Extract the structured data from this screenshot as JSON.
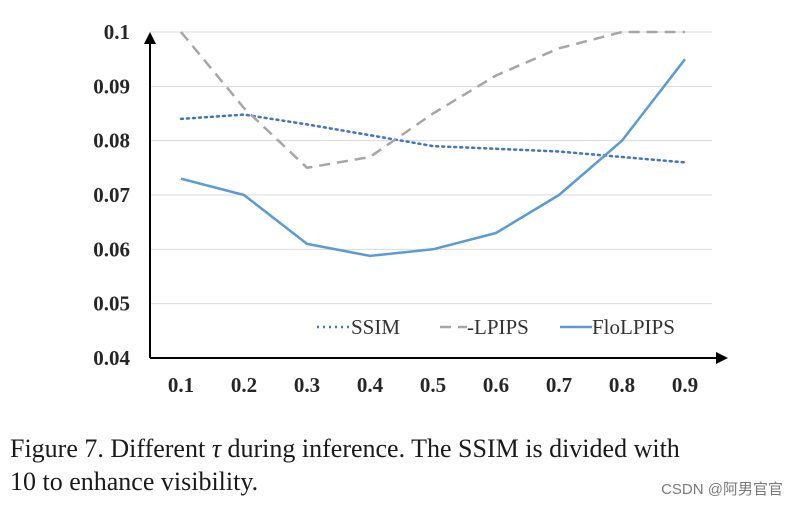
{
  "chart_data": {
    "type": "line",
    "x": [
      0.1,
      0.2,
      0.3,
      0.4,
      0.5,
      0.6,
      0.7,
      0.8,
      0.9
    ],
    "x_tick_labels": [
      "0.1",
      "0.2",
      "0.3",
      "0.4",
      "0.5",
      "0.6",
      "0.7",
      "0.8",
      "0.9"
    ],
    "y_ticks": [
      0.04,
      0.05,
      0.06,
      0.07,
      0.08,
      0.09,
      0.1
    ],
    "y_tick_labels": [
      "0.04",
      "0.05",
      "0.06",
      "0.07",
      "0.08",
      "0.09",
      "0.1"
    ],
    "ylim": [
      0.04,
      0.1
    ],
    "grid": true,
    "legend_position": "bottom-right",
    "series": [
      {
        "name": "SSIM",
        "legend_label": "SSIM",
        "style": "dotted",
        "color": "#4472C4",
        "values": [
          0.084,
          0.0848,
          0.083,
          0.081,
          0.079,
          0.0785,
          0.078,
          0.077,
          0.076
        ]
      },
      {
        "name": "-LPIPS",
        "legend_label": "-LPIPS",
        "style": "dashed",
        "color": "#A6A6A6",
        "values": [
          0.1,
          0.086,
          0.075,
          0.077,
          0.085,
          0.092,
          0.097,
          0.1,
          0.1
        ]
      },
      {
        "name": "FloLPIPS",
        "legend_label": "FloLPIPS",
        "style": "solid",
        "color": "#5B9BD5",
        "values": [
          0.073,
          0.07,
          0.061,
          0.0588,
          0.06,
          0.063,
          0.07,
          0.08,
          0.095
        ]
      }
    ]
  },
  "caption": {
    "prefix": "Figure 7. Different ",
    "symbol": "τ",
    "line1_rest": " during inference. The SSIM is divided with",
    "line2": "10 to enhance visibility."
  },
  "watermark": "CSDN @阿男官官"
}
